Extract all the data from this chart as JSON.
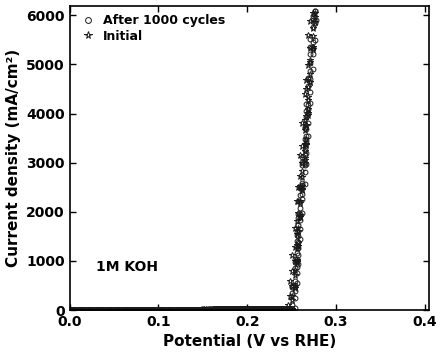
{
  "xlabel": "Potential (V vs RHE)",
  "ylabel": "Current density (mA/cm²)",
  "annotation": "1M KOH",
  "legend": [
    {
      "label": "After 1000 cycles",
      "marker": "o"
    },
    {
      "label": "Initial",
      "marker": "*"
    }
  ],
  "xlim": [
    0.0,
    0.405
  ],
  "ylim": [
    0,
    6200
  ],
  "xticks": [
    0.0,
    0.1,
    0.2,
    0.3,
    0.4
  ],
  "yticks": [
    0,
    1000,
    2000,
    3000,
    4000,
    5000,
    6000
  ],
  "curve_color": "#1a1a1a",
  "background_color": "#ffffff",
  "figsize": [
    4.43,
    3.55
  ],
  "dpi": 100,
  "onset": 0.25,
  "n_cycles_after": 8,
  "n_cycles_initial": 8,
  "scale": 14000,
  "exp_factor": 14.5
}
